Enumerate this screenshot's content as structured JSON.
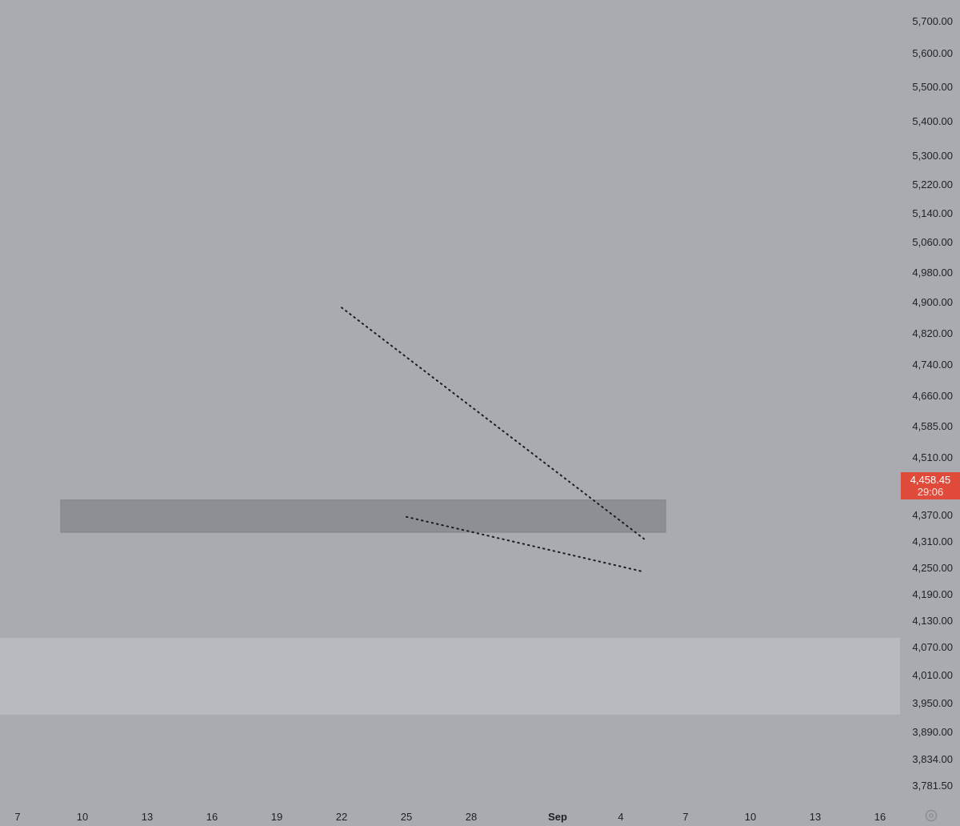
{
  "chart_data": {
    "type": "candlestick",
    "y_scale": "log",
    "ylim": [
      3740,
      5780
    ],
    "y_ticks": [
      "5,700.00",
      "5,600.00",
      "5,500.00",
      "5,400.00",
      "5,300.00",
      "5,220.00",
      "5,140.00",
      "5,060.00",
      "4,980.00",
      "4,900.00",
      "4,820.00",
      "4,740.00",
      "4,660.00",
      "4,585.00",
      "4,510.00",
      "4,370.00",
      "4,310.00",
      "4,250.00",
      "4,190.00",
      "4,130.00",
      "4,070.00",
      "4,010.00",
      "3,950.00",
      "3,890.00",
      "3,834.00",
      "3,781.50"
    ],
    "x_ticks": [
      "7",
      "10",
      "13",
      "16",
      "19",
      "22",
      "25",
      "28",
      "Sep",
      "4",
      "7",
      "10",
      "13",
      "16"
    ],
    "current_price": "4,458.45",
    "countdown": "29:06",
    "colors": {
      "background": "#a9abb1",
      "up": "#26282d",
      "down": "#e03f33",
      "price_label": "#e04a3a",
      "zone_dark": "#8d8f95",
      "zone_light": "#b8babf",
      "trendline": "#1c1c1c",
      "axis_text": "#1f2024"
    },
    "zones": [
      {
        "name": "resistance-zone",
        "y_range": [
          4330,
          4405
        ],
        "x_range": [
          "Aug 9",
          "Sep 6"
        ],
        "shade": "dark"
      },
      {
        "name": "support-zone",
        "y_range": [
          3925,
          4090
        ],
        "x_range": [
          "Aug 6",
          "Sep 17"
        ],
        "shade": "light"
      }
    ],
    "trendlines": [
      {
        "name": "upper-trendline",
        "start": [
          "Aug 22",
          4885
        ],
        "end": [
          "Sep 5",
          4315
        ],
        "style": "dotted"
      },
      {
        "name": "lower-trendline",
        "start": [
          "Aug 25",
          4365
        ],
        "end": [
          "Sep 5",
          4240
        ],
        "style": "dotted"
      }
    ],
    "candles": []
  }
}
